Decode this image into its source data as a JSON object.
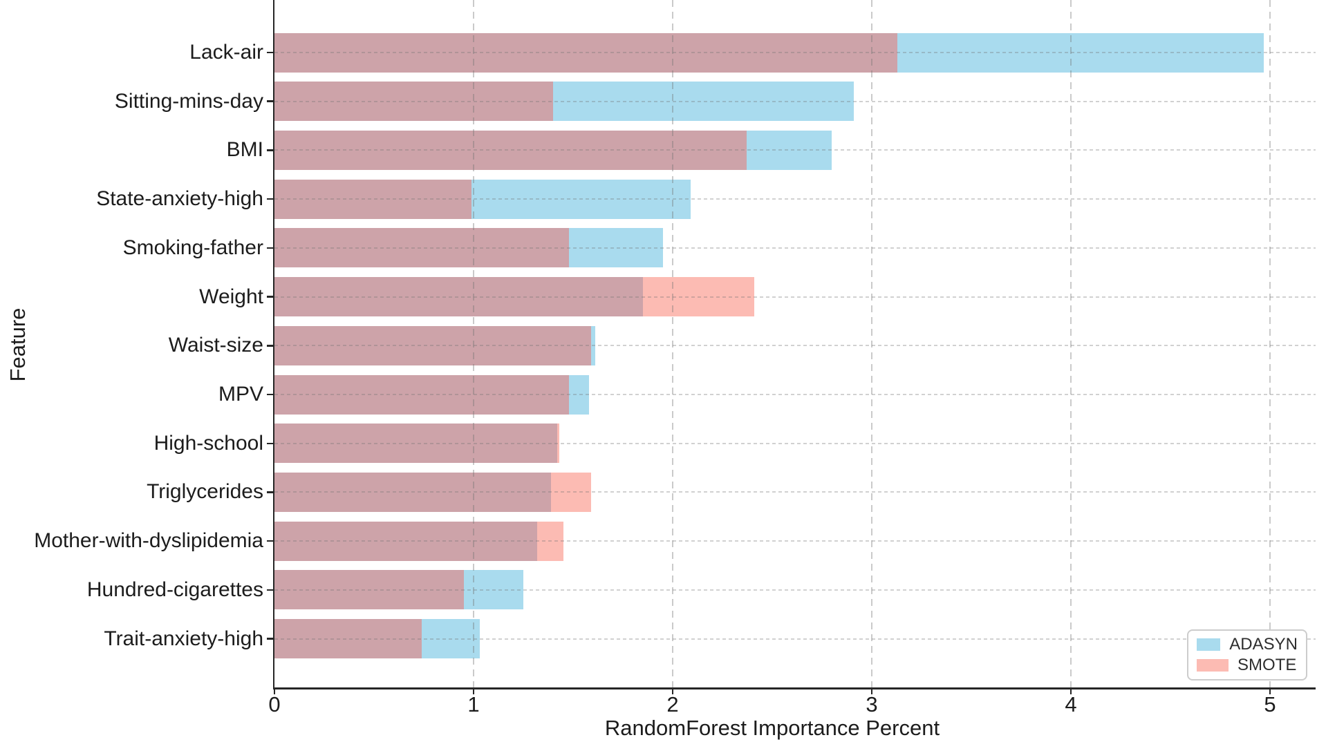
{
  "chart_data": {
    "type": "bar",
    "orientation": "horizontal",
    "title": "",
    "xlabel": "RandomForest Importance Percent",
    "ylabel": "Feature",
    "categories": [
      "Lack-air",
      "Sitting-mins-day",
      "BMI",
      "State-anxiety-high",
      "Smoking-father",
      "Weight",
      "Waist-size",
      "MPV",
      "High-school",
      "Triglycerides",
      "Mother-with-dyslipidemia",
      "Hundred-cigarettes",
      "Trait-anxiety-high"
    ],
    "series": [
      {
        "name": "ADASYN",
        "color": "#a9dbee",
        "values": [
          4.97,
          2.91,
          2.8,
          2.09,
          1.95,
          1.85,
          1.61,
          1.58,
          1.42,
          1.39,
          1.32,
          1.25,
          1.03
        ]
      },
      {
        "name": "SMOTE",
        "color": "#fcbbb3",
        "values": [
          3.13,
          1.4,
          2.37,
          0.99,
          1.48,
          2.41,
          1.59,
          1.48,
          1.43,
          1.59,
          1.45,
          0.95,
          0.74
        ]
      }
    ],
    "overlap_color": "#cda3a9",
    "xticks": [
      "0",
      "1",
      "2",
      "3",
      "4",
      "5"
    ],
    "xlim": [
      0,
      5.23
    ],
    "grid": true,
    "legend_position": "lower right",
    "colors": {
      "axis": "#262626",
      "text": "#1c1c1c",
      "gridline": "#c9c9c9",
      "legend_border": "#cccccc",
      "background": "#ffffff"
    }
  }
}
